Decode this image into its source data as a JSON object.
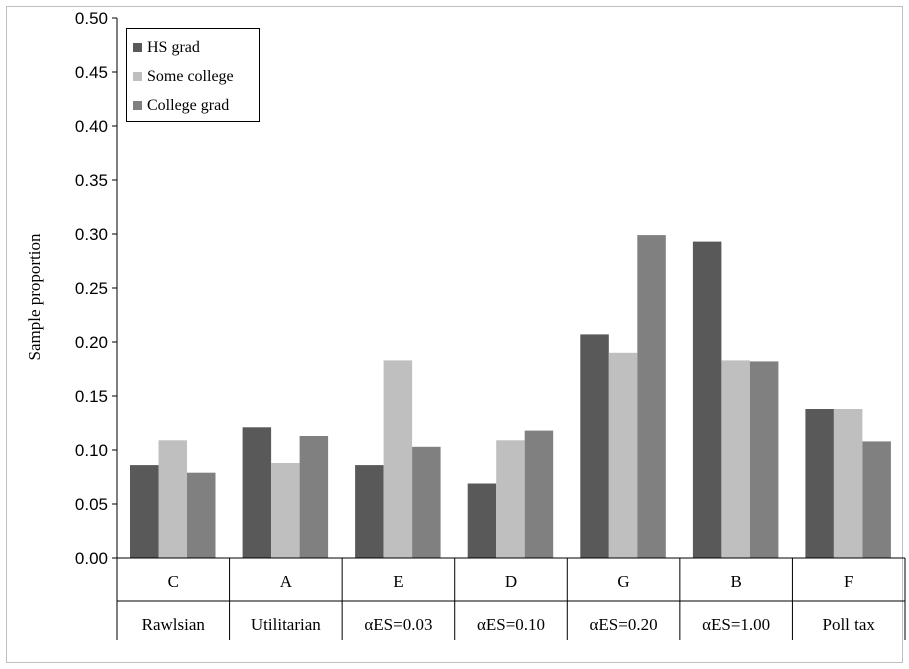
{
  "chart_data": {
    "type": "bar",
    "ylabel": "Sample proportion",
    "ylim": [
      0,
      0.5
    ],
    "yticks": [
      "0.00",
      "0.05",
      "0.10",
      "0.15",
      "0.20",
      "0.25",
      "0.30",
      "0.35",
      "0.40",
      "0.45",
      "0.50"
    ],
    "categories": [
      "C",
      "A",
      "E",
      "D",
      "G",
      "B",
      "F"
    ],
    "category_names": [
      "Rawlsian",
      "Utilitarian",
      "αES=0.03",
      "αES=0.10",
      "αES=0.20",
      "αES=1.00",
      "Poll tax"
    ],
    "legend_position": "top-left",
    "grid": false,
    "series": [
      {
        "name": "HS grad",
        "color": "#595959",
        "values": [
          0.086,
          0.121,
          0.086,
          0.069,
          0.207,
          0.293,
          0.138
        ]
      },
      {
        "name": "Some college",
        "color": "#bfbfbf",
        "values": [
          0.109,
          0.088,
          0.183,
          0.109,
          0.19,
          0.183,
          0.138
        ]
      },
      {
        "name": "College grad",
        "color": "#808080",
        "values": [
          0.079,
          0.113,
          0.103,
          0.118,
          0.299,
          0.182,
          0.108
        ]
      }
    ]
  }
}
